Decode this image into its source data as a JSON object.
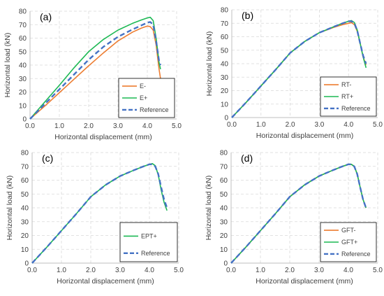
{
  "colors": {
    "e_minus": "#ED7D31",
    "e_plus": "#1DB954",
    "reference": "#4472C4",
    "grid": "#d9d9d9",
    "axis": "#bfbfbf"
  },
  "chart_data": [
    {
      "type": "line",
      "panel_label": "(a)",
      "xlabel": "Horizontal displacement (mm)",
      "ylabel": "Horizontal load (kN)",
      "xlim": [
        0,
        5
      ],
      "ylim": [
        0,
        80
      ],
      "xticks": [
        "0.0",
        "1.0",
        "2.0",
        "3.0",
        "4.0",
        "5.0"
      ],
      "yticks": [
        "0",
        "10",
        "20",
        "30",
        "40",
        "50",
        "60",
        "70",
        "80"
      ],
      "grid": true,
      "legend_position": "bottom-right",
      "series": [
        {
          "name": "E-",
          "color": "#ED7D31",
          "dashed": false,
          "x": [
            0,
            0.5,
            1.0,
            1.5,
            2.0,
            2.5,
            3.0,
            3.5,
            3.8,
            4.0,
            4.1,
            4.2,
            4.3,
            4.4,
            4.45
          ],
          "y": [
            0,
            9.5,
            19.5,
            29.5,
            39.5,
            49,
            58,
            64.5,
            67.5,
            69,
            68.5,
            66,
            55,
            37,
            30
          ]
        },
        {
          "name": "E+",
          "color": "#1DB954",
          "dashed": false,
          "x": [
            0,
            0.5,
            1.0,
            1.5,
            2.0,
            2.5,
            3.0,
            3.5,
            3.8,
            4.0,
            4.1,
            4.2,
            4.3,
            4.4,
            4.45
          ],
          "y": [
            0,
            12.5,
            25,
            38,
            50,
            59,
            66,
            71,
            73.5,
            75,
            75.5,
            73,
            60,
            42,
            37
          ]
        },
        {
          "name": "Reference",
          "color": "#4472C4",
          "dashed": true,
          "x": [
            0,
            0.5,
            1.0,
            1.5,
            2.0,
            2.5,
            3.0,
            3.5,
            3.8,
            4.0,
            4.1,
            4.2,
            4.3,
            4.4,
            4.45
          ],
          "y": [
            0,
            11,
            22,
            33,
            44,
            53.5,
            61,
            66.5,
            69.5,
            71.5,
            72,
            70,
            58,
            43,
            40
          ]
        }
      ]
    },
    {
      "type": "line",
      "panel_label": "(b)",
      "xlabel": "Horizontal displacement (mm)",
      "ylabel": "Horizontal load (kN)",
      "xlim": [
        0,
        5
      ],
      "ylim": [
        0,
        80
      ],
      "xticks": [
        "0.0",
        "1.0",
        "2.0",
        "3.0",
        "4.0",
        "5.0"
      ],
      "yticks": [
        "0",
        "10",
        "20",
        "30",
        "40",
        "50",
        "60",
        "70",
        "80"
      ],
      "grid": true,
      "legend_position": "bottom-right",
      "series": [
        {
          "name": "RT-",
          "color": "#ED7D31",
          "dashed": false,
          "x": [
            0,
            0.5,
            1.0,
            1.5,
            2.0,
            2.5,
            3.0,
            3.5,
            3.8,
            4.0,
            4.1,
            4.2,
            4.3,
            4.4,
            4.5,
            4.6
          ],
          "y": [
            0,
            11.5,
            23.5,
            35.5,
            48,
            56.5,
            63,
            67,
            69,
            70,
            70.5,
            69,
            64,
            55,
            45,
            39
          ]
        },
        {
          "name": "RT+",
          "color": "#1DB954",
          "dashed": false,
          "x": [
            0,
            0.5,
            1.0,
            1.5,
            2.0,
            2.5,
            3.0,
            3.5,
            3.8,
            4.0,
            4.1,
            4.2,
            4.3,
            4.4,
            4.5,
            4.6
          ],
          "y": [
            0,
            11.5,
            23.5,
            35.5,
            48,
            56.5,
            63,
            67.5,
            70,
            71.5,
            72,
            70.5,
            65,
            55,
            45,
            37
          ]
        },
        {
          "name": "Reference",
          "color": "#4472C4",
          "dashed": true,
          "x": [
            0,
            0.5,
            1.0,
            1.5,
            2.0,
            2.5,
            3.0,
            3.5,
            3.8,
            4.0,
            4.1,
            4.2,
            4.3,
            4.4,
            4.5,
            4.6
          ],
          "y": [
            0,
            11.5,
            23.5,
            35.5,
            48,
            56.5,
            63,
            67.5,
            70,
            71.5,
            71.5,
            70,
            64.5,
            55,
            46,
            40
          ]
        }
      ]
    },
    {
      "type": "line",
      "panel_label": "(c)",
      "xlabel": "Horizontal displacement (mm)",
      "ylabel": "Horizontal load (kN)",
      "xlim": [
        0,
        5
      ],
      "ylim": [
        0,
        80
      ],
      "xticks": [
        "0.0",
        "1.0",
        "2.0",
        "3.0",
        "4.0",
        "5.0"
      ],
      "yticks": [
        "0",
        "10",
        "20",
        "30",
        "40",
        "50",
        "60",
        "70",
        "80"
      ],
      "grid": true,
      "legend_position": "bottom-right",
      "series": [
        {
          "name": "EPT+",
          "color": "#1DB954",
          "dashed": false,
          "x": [
            0,
            0.5,
            1.0,
            1.5,
            2.0,
            2.5,
            3.0,
            3.5,
            3.8,
            4.0,
            4.1,
            4.2,
            4.3,
            4.4,
            4.5,
            4.6
          ],
          "y": [
            0,
            11.5,
            23.5,
            35.5,
            48,
            56.5,
            63,
            67.5,
            70,
            71.5,
            72,
            70.5,
            64,
            53,
            44,
            38
          ]
        },
        {
          "name": "Reference",
          "color": "#4472C4",
          "dashed": true,
          "x": [
            0,
            0.5,
            1.0,
            1.5,
            2.0,
            2.5,
            3.0,
            3.5,
            3.8,
            4.0,
            4.1,
            4.2,
            4.3,
            4.4,
            4.5,
            4.6
          ],
          "y": [
            0,
            11.5,
            23.5,
            35.5,
            48,
            56.5,
            63,
            67.5,
            70,
            71.5,
            71.5,
            70,
            64.5,
            55,
            46,
            40
          ]
        }
      ]
    },
    {
      "type": "line",
      "panel_label": "(d)",
      "xlabel": "Horizontal displacement (mm)",
      "ylabel": "Horizontal load (kN)",
      "xlim": [
        0,
        5
      ],
      "ylim": [
        0,
        80
      ],
      "xticks": [
        "0.0",
        "1.0",
        "2.0",
        "3.0",
        "4.0",
        "5.0"
      ],
      "yticks": [
        "0",
        "10",
        "20",
        "30",
        "40",
        "50",
        "60",
        "70",
        "80"
      ],
      "grid": true,
      "legend_position": "bottom-right",
      "series": [
        {
          "name": "GFT-",
          "color": "#ED7D31",
          "dashed": false,
          "x": [
            0,
            0.5,
            1.0,
            1.5,
            2.0,
            2.5,
            3.0,
            3.5,
            3.8,
            4.0,
            4.1,
            4.2,
            4.3,
            4.4,
            4.5,
            4.6
          ],
          "y": [
            0,
            11.5,
            23.5,
            35.5,
            48,
            56.5,
            63,
            67.5,
            70,
            71.5,
            71.5,
            70,
            64.5,
            55,
            46,
            40
          ]
        },
        {
          "name": "GFT+",
          "color": "#1DB954",
          "dashed": false,
          "x": [
            0,
            0.5,
            1.0,
            1.5,
            2.0,
            2.5,
            3.0,
            3.5,
            3.8,
            4.0,
            4.1,
            4.2,
            4.3,
            4.4,
            4.5,
            4.6
          ],
          "y": [
            0,
            11.5,
            23.5,
            35.5,
            48,
            56.5,
            63,
            67.5,
            70,
            71.5,
            71.5,
            70,
            64.5,
            55,
            46,
            40
          ]
        },
        {
          "name": "Reference",
          "color": "#4472C4",
          "dashed": true,
          "x": [
            0,
            0.5,
            1.0,
            1.5,
            2.0,
            2.5,
            3.0,
            3.5,
            3.8,
            4.0,
            4.1,
            4.2,
            4.3,
            4.4,
            4.5,
            4.6
          ],
          "y": [
            0,
            11.5,
            23.5,
            35.5,
            48,
            56.5,
            63,
            67.5,
            70,
            71.5,
            71.5,
            70,
            64.5,
            55,
            46,
            40
          ]
        }
      ]
    }
  ]
}
